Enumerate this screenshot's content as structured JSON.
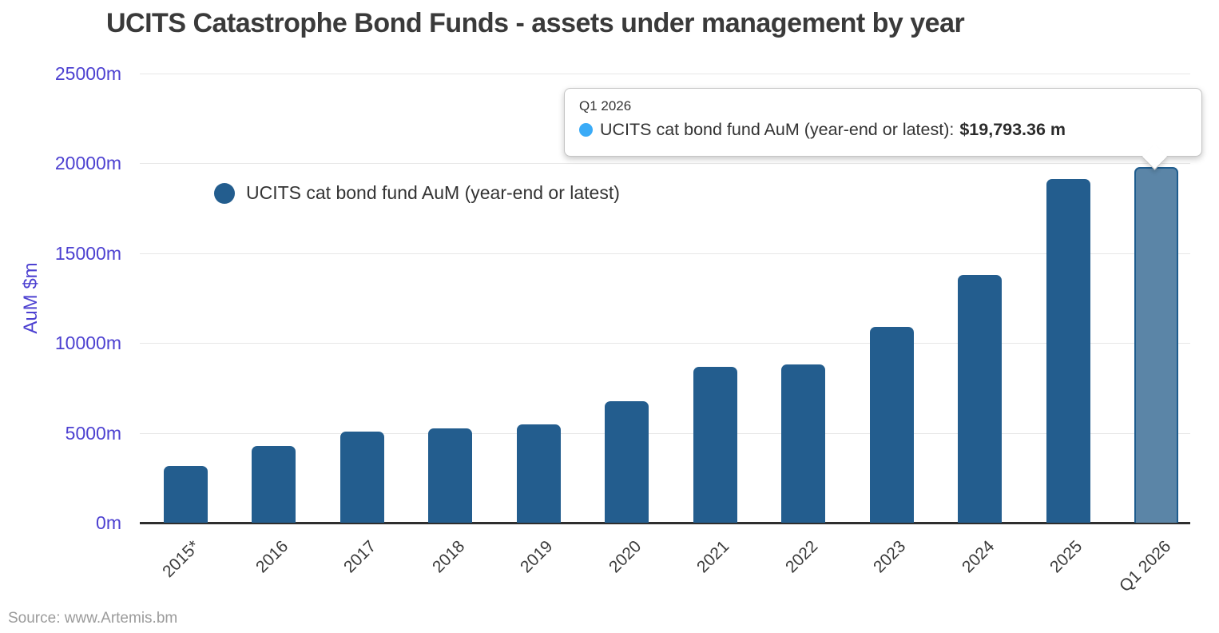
{
  "page": {
    "source": "Source: www.Artemis.bm"
  },
  "chart_data": {
    "type": "bar",
    "title": "UCITS Catastrophe Bond Funds - assets under management by year",
    "xlabel": "",
    "ylabel": "AuM $m",
    "ylim": [
      0,
      25000
    ],
    "grid": true,
    "categories": [
      "2015*",
      "2016",
      "2017",
      "2018",
      "2019",
      "2020",
      "2021",
      "2022",
      "2023",
      "2024",
      "2025",
      "Q1 2026"
    ],
    "series": [
      {
        "name": "UCITS cat bond fund AuM (year-end or latest)",
        "values": [
          3170,
          4270,
          5060,
          5250,
          5460,
          6750,
          8660,
          8790,
          10880,
          13810,
          19150,
          19793.36
        ]
      }
    ],
    "yticks": [
      {
        "value": 0,
        "label": "0m"
      },
      {
        "value": 5000,
        "label": "5000m"
      },
      {
        "value": 10000,
        "label": "10000m"
      },
      {
        "value": 15000,
        "label": "15000m"
      },
      {
        "value": 20000,
        "label": "20000m"
      },
      {
        "value": 25000,
        "label": "25000m"
      }
    ],
    "legend": {
      "label": "UCITS cat bond fund AuM (year-end or latest)",
      "position": "top-left-inside",
      "marker_color": "#235d8e"
    },
    "highlight_index": 11,
    "colors": {
      "bar": "#235d8e",
      "highlight_fill": "#5b85a7",
      "highlight_border": "#1e5c8e",
      "axis_text": "#4d41d1",
      "gridline": "#e7e7e7",
      "axis_line": "#2e2e2e"
    }
  },
  "tooltip": {
    "header": "Q1 2026",
    "label": "UCITS cat bond fund AuM (year-end or latest):",
    "value": "$19,793.36 m",
    "dot_color": "#3aabf7"
  }
}
